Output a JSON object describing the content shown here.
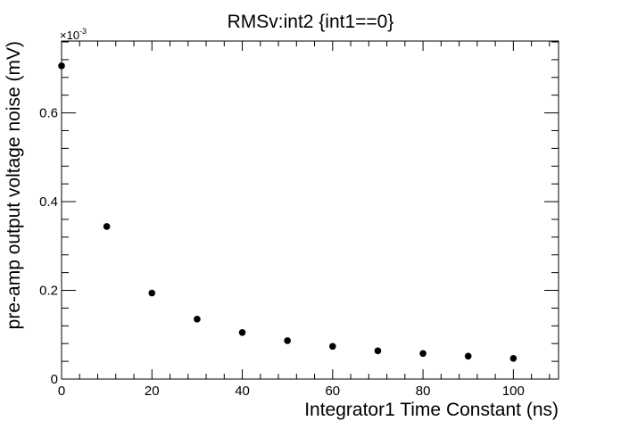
{
  "chart_data": {
    "type": "scatter",
    "title": "RMSv:int2 {int1==0}",
    "xlabel": "Integrator1 Time Constant (ns)",
    "ylabel": "pre-amp output voltage noise (mV)",
    "y_multiplier": {
      "base": "×10",
      "exponent": "-3"
    },
    "xlim": [
      0,
      110
    ],
    "ylim": [
      0,
      0.000762
    ],
    "x_ticks": [
      0,
      20,
      40,
      60,
      80,
      100
    ],
    "x_tick_labels": [
      "0",
      "20",
      "40",
      "60",
      "80",
      "100"
    ],
    "y_ticks": [
      0,
      0.0002,
      0.0004,
      0.0006
    ],
    "y_tick_labels": [
      "0",
      "0.2",
      "0.4",
      "0.6"
    ],
    "grid": false,
    "marker_color": "#000000",
    "x": [
      0,
      10,
      20,
      30,
      40,
      50,
      60,
      70,
      80,
      90,
      100
    ],
    "y": [
      0.000706,
      0.000344,
      0.000194,
      0.000135,
      0.000105,
      8.65e-05,
      7.38e-05,
      6.37e-05,
      5.77e-05,
      5.17e-05,
      4.67e-05
    ]
  }
}
